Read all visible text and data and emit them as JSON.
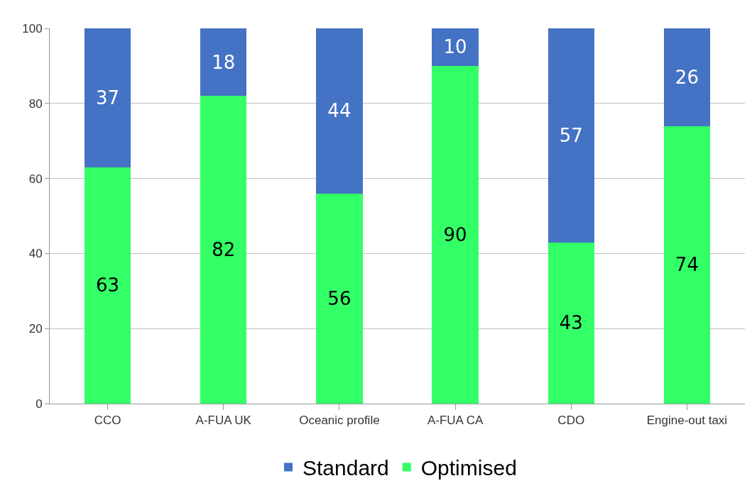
{
  "chart_data": {
    "type": "bar",
    "stacked": true,
    "categories": [
      "CCO",
      "A-FUA UK",
      "Oceanic profile",
      "A-FUA CA",
      "CDO",
      "Engine-out taxi"
    ],
    "series": [
      {
        "name": "Optimised",
        "color": "#33ff66",
        "values": [
          63,
          82,
          56,
          90,
          43,
          74
        ]
      },
      {
        "name": "Standard",
        "color": "#4472c4",
        "values": [
          37,
          18,
          44,
          10,
          57,
          26
        ]
      }
    ],
    "ylim": [
      0,
      100
    ],
    "yticks": [
      0,
      20,
      40,
      60,
      80,
      100
    ],
    "grid": "y",
    "legend": "bottom",
    "data_labels": true
  }
}
